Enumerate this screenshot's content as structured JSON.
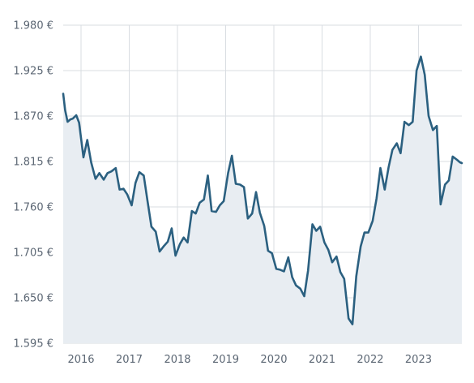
{
  "chart_data": {
    "type": "area",
    "title": "",
    "xlabel": "",
    "ylabel": "",
    "x_ticks": [
      "2016",
      "2017",
      "2018",
      "2019",
      "2020",
      "2021",
      "2022",
      "2023"
    ],
    "y_ticks": [
      "1.980 €",
      "1.925 €",
      "1.870 €",
      "1.815 €",
      "1.760 €",
      "1.705 €",
      "1.650 €",
      "1.595 €"
    ],
    "ylim": [
      1.595,
      1.98
    ],
    "xlim": [
      2015.63,
      2023.9
    ],
    "grid": true,
    "colors": {
      "line": "#2b6080",
      "area": "#e8edf2",
      "grid": "#d9dde2",
      "text": "#5b6673"
    },
    "series": [
      {
        "x": [
          2015.63,
          2015.67,
          2015.72,
          2015.78,
          2015.83,
          2015.9,
          2015.96,
          2016.05,
          2016.13,
          2016.21,
          2016.3,
          2016.38,
          2016.47,
          2016.55,
          2016.63,
          2016.72,
          2016.8,
          2016.88,
          2016.96,
          2017.05,
          2017.13,
          2017.21,
          2017.3,
          2017.38,
          2017.46,
          2017.55,
          2017.63,
          2017.71,
          2017.8,
          2017.88,
          2017.96,
          2018.05,
          2018.13,
          2018.21,
          2018.3,
          2018.38,
          2018.46,
          2018.55,
          2018.63,
          2018.71,
          2018.8,
          2018.88,
          2018.96,
          2019.05,
          2019.13,
          2019.21,
          2019.3,
          2019.38,
          2019.46,
          2019.55,
          2019.63,
          2019.71,
          2019.8,
          2019.88,
          2019.96,
          2020.05,
          2020.13,
          2020.21,
          2020.3,
          2020.38,
          2020.46,
          2020.55,
          2020.63,
          2020.71,
          2020.8,
          2020.88,
          2020.96,
          2021.05,
          2021.13,
          2021.21,
          2021.3,
          2021.38,
          2021.46,
          2021.55,
          2021.63,
          2021.71,
          2021.8,
          2021.88,
          2021.96,
          2022.05,
          2022.13,
          2022.21,
          2022.3,
          2022.38,
          2022.46,
          2022.55,
          2022.63,
          2022.71,
          2022.8,
          2022.88,
          2022.96,
          2023.05,
          2023.13,
          2023.21,
          2023.3,
          2023.38,
          2023.46,
          2023.55,
          2023.63,
          2023.71,
          2023.8,
          2023.86,
          2023.9
        ],
        "values": [
          1.897,
          1.877,
          1.863,
          1.866,
          1.867,
          1.871,
          1.862,
          1.82,
          1.841,
          1.814,
          1.794,
          1.801,
          1.793,
          1.801,
          1.803,
          1.807,
          1.781,
          1.782,
          1.775,
          1.762,
          1.789,
          1.802,
          1.798,
          1.767,
          1.736,
          1.73,
          1.706,
          1.712,
          1.718,
          1.734,
          1.701,
          1.715,
          1.723,
          1.717,
          1.755,
          1.752,
          1.765,
          1.769,
          1.798,
          1.755,
          1.754,
          1.762,
          1.767,
          1.801,
          1.822,
          1.788,
          1.787,
          1.784,
          1.746,
          1.752,
          1.778,
          1.753,
          1.737,
          1.707,
          1.704,
          1.685,
          1.684,
          1.682,
          1.699,
          1.675,
          1.665,
          1.661,
          1.652,
          1.683,
          1.739,
          1.731,
          1.736,
          1.717,
          1.708,
          1.693,
          1.7,
          1.681,
          1.673,
          1.625,
          1.618,
          1.676,
          1.712,
          1.729,
          1.729,
          1.743,
          1.77,
          1.807,
          1.781,
          1.808,
          1.829,
          1.837,
          1.825,
          1.863,
          1.859,
          1.863,
          1.925,
          1.942,
          1.92,
          1.87,
          1.853,
          1.858,
          1.763,
          1.787,
          1.792,
          1.821,
          1.817,
          1.814,
          1.813
        ]
      }
    ]
  }
}
